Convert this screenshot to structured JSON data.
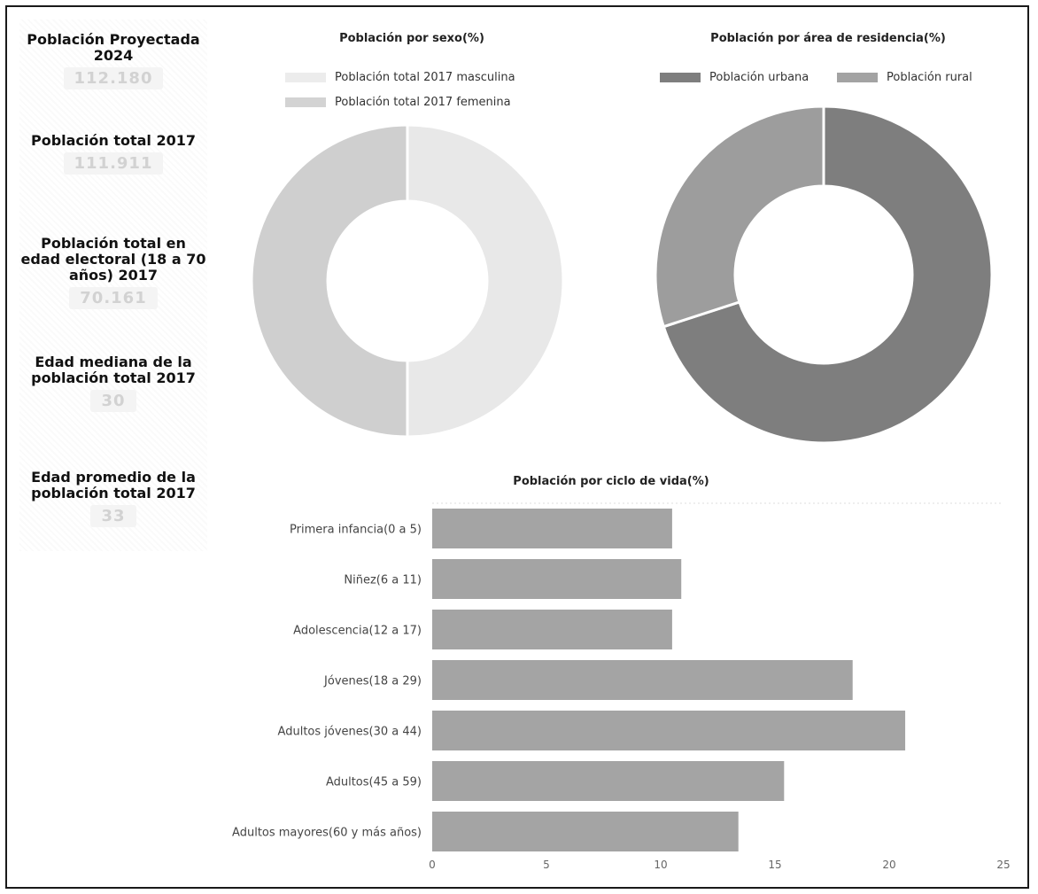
{
  "kpis": [
    {
      "label": "Población Proyectada 2024",
      "value": "112.180"
    },
    {
      "label": "Población total 2017",
      "value": "111.911"
    },
    {
      "label": "Población total en edad electoral (18 a 70 años) 2017",
      "value": "70.161"
    },
    {
      "label": "Edad mediana de la población total 2017",
      "value": "30"
    },
    {
      "label": "Edad promedio de la población total 2017",
      "value": "33"
    }
  ],
  "chart_data": [
    {
      "type": "pie",
      "title": "Población por sexo(%)",
      "categories": [
        "Población total 2017 masculina",
        "Población total 2017 femenina"
      ],
      "values": [
        50,
        50
      ],
      "colors": [
        "#e8e8e8",
        "#cfcfcf"
      ],
      "legend": "top"
    },
    {
      "type": "pie",
      "title": "Población por área de residencia(%)",
      "categories": [
        "Población urbana",
        "Población rural"
      ],
      "values": [
        70,
        30
      ],
      "colors": [
        "#7e7e7e",
        "#9d9d9d"
      ],
      "legend": "top"
    },
    {
      "type": "bar",
      "orientation": "horizontal",
      "title": "Población por ciclo de vida(%)",
      "categories": [
        "Primera infancia(0 a 5)",
        "Niñez(6 a 11)",
        "Adolescencia(12 a 17)",
        "Jóvenes(18 a 29)",
        "Adultos jóvenes(30 a 44)",
        "Adultos(45 a 59)",
        "Adultos mayores(60 y más años)"
      ],
      "values": [
        10.5,
        10.9,
        10.5,
        18.4,
        20.7,
        15.4,
        13.4
      ],
      "xlim": [
        0,
        25
      ],
      "xticks": [
        "0",
        "5",
        "10",
        "15",
        "20",
        "25"
      ],
      "color": "#a4a4a4",
      "grid": false
    }
  ]
}
